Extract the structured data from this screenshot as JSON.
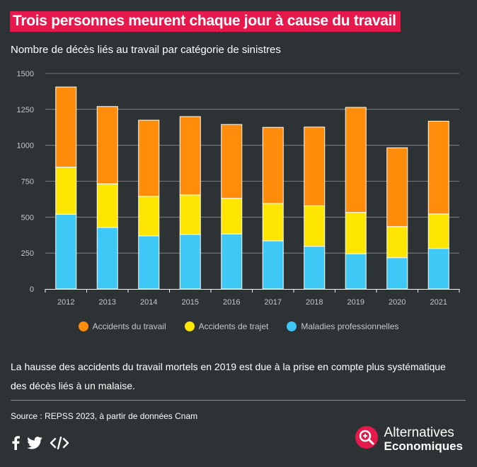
{
  "title": "Trois personnes meurent chaque jour à cause du travail",
  "subtitle": "Nombre de décès liés au travail par catégorie de sinistres",
  "chart_data": {
    "type": "bar",
    "stacked": true,
    "categories": [
      "2012",
      "2013",
      "2014",
      "2015",
      "2016",
      "2017",
      "2018",
      "2019",
      "2020",
      "2021"
    ],
    "series": [
      {
        "name": "Maladies professionnelles",
        "color": "#3ec8f5",
        "values": [
          520,
          428,
          370,
          380,
          383,
          335,
          297,
          245,
          218,
          282
        ]
      },
      {
        "name": "Accidents de trajet",
        "color": "#ffe600",
        "values": [
          328,
          304,
          275,
          275,
          248,
          260,
          282,
          288,
          216,
          240
        ]
      },
      {
        "name": "Accidents du travail",
        "color": "#ff8c0a",
        "values": [
          558,
          538,
          530,
          545,
          514,
          530,
          548,
          731,
          549,
          646
        ]
      }
    ],
    "ylim": [
      0,
      1500
    ],
    "yticks": [
      "0",
      "250",
      "500",
      "750",
      "1000",
      "1250",
      "1500"
    ],
    "grid": true,
    "legend": "bottom",
    "legend_order": [
      "Accidents du travail",
      "Accidents de trajet",
      "Maladies professionnelles"
    ]
  },
  "note": "La hausse des accidents du travail mortels en 2019 est due à la prise en compte plus systématique des décès liés à un malaise.",
  "source": "Source : REPSS 2023, à partir de données Cnam",
  "brand": {
    "line1": "Alternatives",
    "line2": "Economiques"
  },
  "share_icons": [
    "facebook-icon",
    "twitter-icon",
    "embed-code-icon"
  ]
}
